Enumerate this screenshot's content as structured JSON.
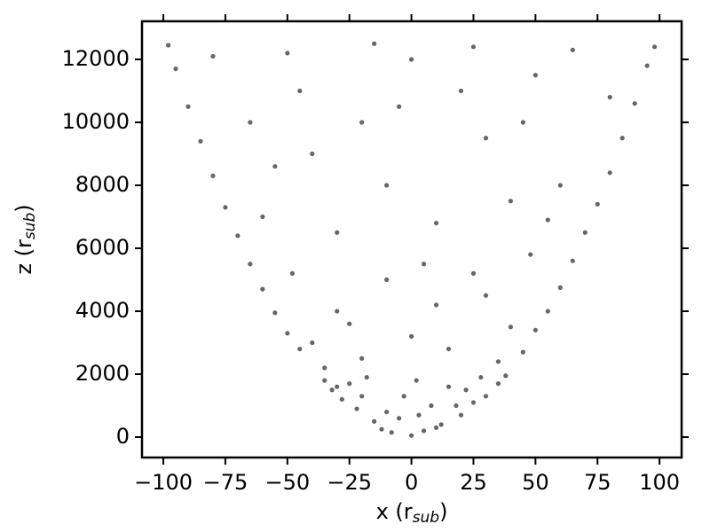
{
  "chart_data": {
    "type": "scatter",
    "xlabel": {
      "main": "x (r",
      "sub": "sub",
      "end": ")"
    },
    "ylabel": {
      "main": "z (r",
      "sub": "sub",
      "end": ")"
    },
    "color": "#666666",
    "xlim": [
      -108.6,
      108.9
    ],
    "xticks": [
      {
        "value": -100,
        "label": "−100"
      },
      {
        "value": -75,
        "label": "−75"
      },
      {
        "value": -50,
        "label": "−50"
      },
      {
        "value": -25,
        "label": "−25"
      },
      0,
      25,
      50,
      75,
      100
    ],
    "ylim": [
      -648,
      13211
    ],
    "yticks": [
      0,
      2000,
      4000,
      6000,
      8000,
      10000,
      12000
    ],
    "x": [
      0,
      5,
      -8,
      12,
      -15,
      20,
      -22,
      25,
      -28,
      30,
      -32,
      35,
      -35,
      38,
      -10,
      8,
      -3,
      15,
      -18,
      2,
      -25,
      28,
      10,
      -5,
      18,
      -20,
      22,
      -12,
      3,
      -30,
      -45,
      45,
      -50,
      50,
      -55,
      55,
      -60,
      60,
      -65,
      65,
      -40,
      40,
      -20,
      15,
      0,
      -30,
      30,
      -10,
      10,
      -48,
      48,
      5,
      -35,
      35,
      -25,
      25,
      -70,
      70,
      -75,
      75,
      -80,
      80,
      -85,
      85,
      -90,
      90,
      -95,
      95,
      -98,
      98,
      -60,
      60,
      -40,
      40,
      -20,
      20,
      0,
      -50,
      50,
      -30,
      30,
      -10,
      10,
      -65,
      65,
      -80,
      80,
      -5,
      45,
      -45,
      25,
      -15,
      55,
      -55
    ],
    "y": [
      50,
      200,
      150,
      400,
      500,
      700,
      900,
      1100,
      1200,
      1300,
      1500,
      1700,
      1800,
      1950,
      800,
      1000,
      1300,
      1600,
      1900,
      1800,
      1700,
      1900,
      300,
      600,
      1000,
      1300,
      1500,
      250,
      700,
      1600,
      2800,
      2700,
      3300,
      3400,
      3950,
      4000,
      4700,
      4750,
      5500,
      5600,
      3000,
      3500,
      2500,
      2800,
      3200,
      4000,
      4500,
      5000,
      4200,
      5200,
      5800,
      5500,
      2200,
      2400,
      3600,
      5200,
      6400,
      6500,
      7300,
      7400,
      8300,
      8400,
      9400,
      9500,
      10500,
      10600,
      11700,
      11800,
      12450,
      12400,
      7000,
      8000,
      9000,
      7500,
      10000,
      11000,
      12000,
      12200,
      11500,
      6500,
      9500,
      8000,
      6800,
      10000,
      12300,
      12100,
      10800,
      10500,
      10000,
      11000,
      12400,
      12500,
      6900,
      8600
    ]
  }
}
